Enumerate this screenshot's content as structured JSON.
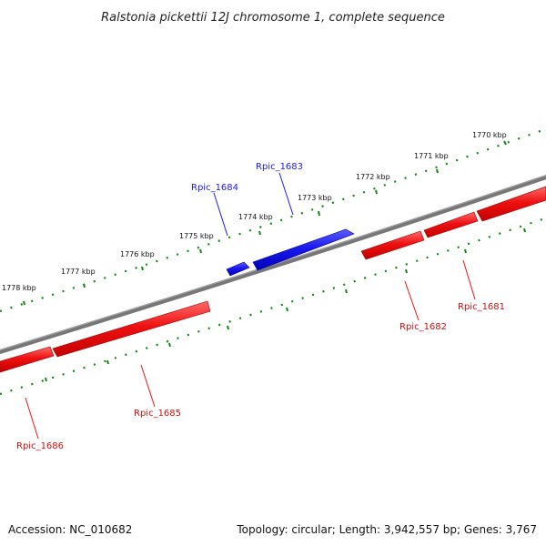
{
  "title": "Ralstonia pickettii 12J chromosome 1, complete sequence",
  "footer": {
    "accession": "Accession: NC_010682",
    "summary": "Topology: circular; Length: 3,942,557 bp; Genes: 3,767"
  },
  "colors": {
    "backbone": "#808080",
    "ticks": "#118811",
    "forward_gene": "#1a1aee",
    "reverse_gene": "#ee1111"
  },
  "scale_labels": [
    "1770 kbp",
    "1771 kbp",
    "1772 kbp",
    "1773 kbp",
    "1774 kbp",
    "1775 kbp",
    "1776 kbp",
    "1777 kbp",
    "1778 kbp"
  ],
  "genes": [
    {
      "name": "Rpic_1683",
      "strand": "forward"
    },
    {
      "name": "Rpic_1684",
      "strand": "forward"
    },
    {
      "name": "Rpic_1681",
      "strand": "reverse"
    },
    {
      "name": "Rpic_1682",
      "strand": "reverse"
    },
    {
      "name": "Rpic_1685",
      "strand": "reverse"
    },
    {
      "name": "Rpic_1686",
      "strand": "reverse"
    }
  ]
}
